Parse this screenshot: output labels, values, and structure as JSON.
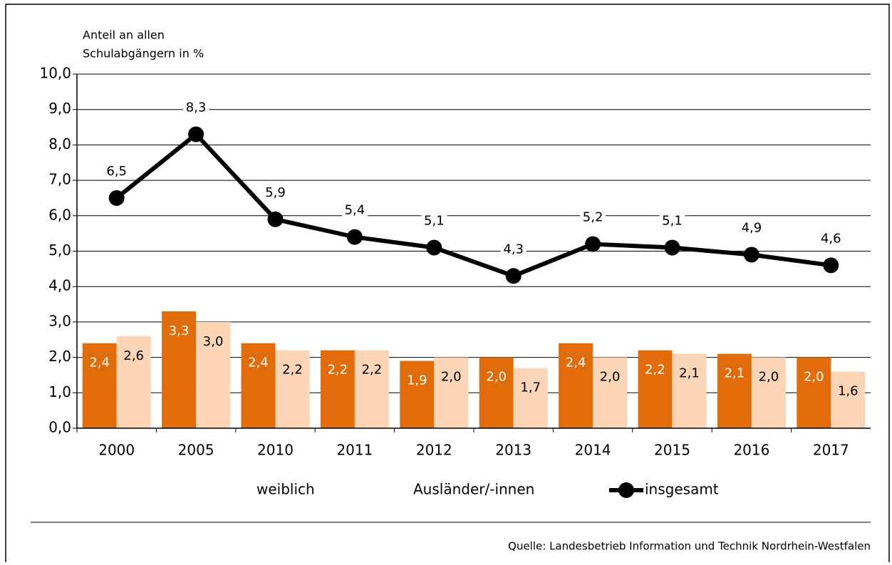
{
  "chart_data": {
    "type": "bar_line",
    "y_label": [
      "Anteil an allen",
      "Schulabgängern in %"
    ],
    "categories": [
      "2000",
      "2005",
      "2010",
      "2011",
      "2012",
      "2013",
      "2014",
      "2015",
      "2016",
      "2017"
    ],
    "series": [
      {
        "name": "weiblich",
        "type": "bar",
        "color": "#e36c0a",
        "values": [
          2.4,
          3.3,
          2.4,
          2.2,
          1.9,
          2.0,
          2.4,
          2.2,
          2.1,
          2.0
        ],
        "value_labels": [
          "2,4",
          "3,3",
          "2,4",
          "2,2",
          "1,9",
          "2,0",
          "2,4",
          "2,2",
          "2,1",
          "2,0"
        ]
      },
      {
        "name": "Ausländer/-innen",
        "type": "bar",
        "color": "#fbd5b5",
        "values": [
          2.6,
          3.0,
          2.2,
          2.2,
          2.0,
          1.7,
          2.0,
          2.1,
          2.0,
          1.6
        ],
        "value_labels": [
          "2,6",
          "3,0",
          "2,2",
          "2,2",
          "2,0",
          "1,7",
          "2,0",
          "2,1",
          "2,0",
          "1,6"
        ]
      },
      {
        "name": "insgesamt",
        "type": "line",
        "color": "#000000",
        "values": [
          6.5,
          8.3,
          5.9,
          5.4,
          5.1,
          4.3,
          5.2,
          5.1,
          4.9,
          4.6
        ],
        "value_labels": [
          "6,5",
          "8,3",
          "5,9",
          "5,4",
          "5,1",
          "4,3",
          "5,2",
          "5,1",
          "4,9",
          "4,6"
        ]
      }
    ],
    "ylim": [
      0,
      10
    ],
    "yticks": [
      {
        "value": 0,
        "label": "0,0"
      },
      {
        "value": 1,
        "label": "1,0"
      },
      {
        "value": 2,
        "label": "2,0"
      },
      {
        "value": 3,
        "label": "3,0"
      },
      {
        "value": 4,
        "label": "4,0"
      },
      {
        "value": 5,
        "label": "5,0"
      },
      {
        "value": 6,
        "label": "6,0"
      },
      {
        "value": 7,
        "label": "7,0"
      },
      {
        "value": 8,
        "label": "8,0"
      },
      {
        "value": 9,
        "label": "9,0"
      },
      {
        "value": 10,
        "label": "10,0"
      }
    ],
    "grid": true,
    "legend": "bottom",
    "source": "Quelle: Landesbetrieb Information und Technik Nordrhein-Westfalen"
  }
}
